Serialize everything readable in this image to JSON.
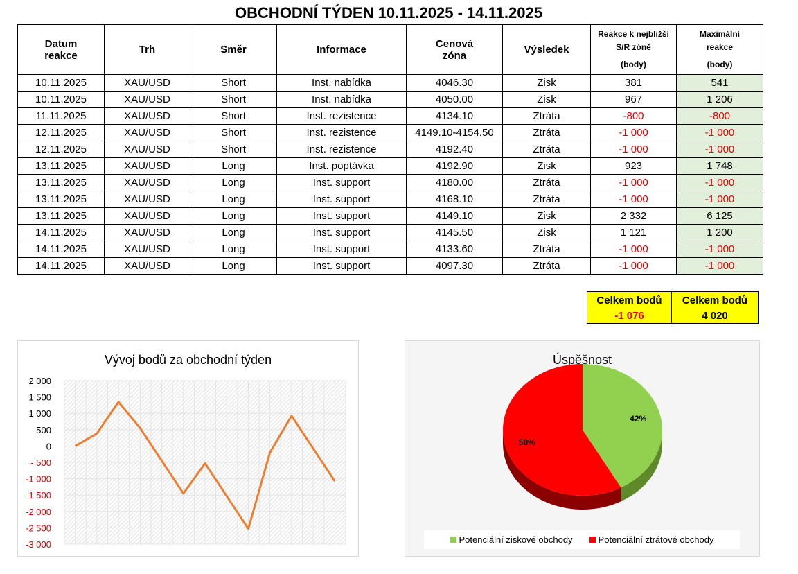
{
  "title": "OBCHODNÍ TÝDEN 10.11.2025 - 14.11.2025",
  "table": {
    "headers": [
      "Datum reakce",
      "Trh",
      "Směr",
      "Informace",
      "Cenová zóna",
      "Výsledek",
      "Reakce k nejbližší S/R zóně (body)",
      "Maximální reakce (body)"
    ],
    "header_lines": [
      [
        "Datum",
        "reakce"
      ],
      [
        "Trh"
      ],
      [
        "Směr"
      ],
      [
        "Informace"
      ],
      [
        "Cenová",
        "zóna"
      ],
      [
        "Výsledek"
      ],
      [
        "Reakce k nejbližší",
        "S/R zóně",
        "(body)"
      ],
      [
        "Maximální",
        "reakce",
        "(body)"
      ]
    ],
    "rows": [
      [
        "10.11.2025",
        "XAU/USD",
        "Short",
        "Inst. nabídka",
        "4046.30",
        "Zisk",
        "381",
        "541"
      ],
      [
        "10.11.2025",
        "XAU/USD",
        "Short",
        "Inst. nabídka",
        "4050.00",
        "Zisk",
        "967",
        "1 206"
      ],
      [
        "11.11.2025",
        "XAU/USD",
        "Short",
        "Inst. rezistence",
        "4134.10",
        "Ztráta",
        "-800",
        "-800"
      ],
      [
        "12.11.2025",
        "XAU/USD",
        "Short",
        "Inst. rezistence",
        "4149.10-4154.50",
        "Ztráta",
        "-1 000",
        "-1 000"
      ],
      [
        "12.11.2025",
        "XAU/USD",
        "Short",
        "Inst. rezistence",
        "4192.40",
        "Ztráta",
        "-1 000",
        "-1 000"
      ],
      [
        "13.11.2025",
        "XAU/USD",
        "Long",
        "Inst. poptávka",
        "4192.90",
        "Zisk",
        "923",
        "1 748"
      ],
      [
        "13.11.2025",
        "XAU/USD",
        "Long",
        "Inst. support",
        "4180.00",
        "Ztráta",
        "-1 000",
        "-1 000"
      ],
      [
        "13.11.2025",
        "XAU/USD",
        "Long",
        "Inst. support",
        "4168.10",
        "Ztráta",
        "-1 000",
        "-1 000"
      ],
      [
        "13.11.2025",
        "XAU/USD",
        "Long",
        "Inst. support",
        "4149.10",
        "Zisk",
        "2 332",
        "6 125"
      ],
      [
        "14.11.2025",
        "XAU/USD",
        "Long",
        "Inst. support",
        "4145.50",
        "Zisk",
        "1 121",
        "1 200"
      ],
      [
        "14.11.2025",
        "XAU/USD",
        "Long",
        "Inst. support",
        "4133.60",
        "Ztráta",
        "-1 000",
        "-1 000"
      ],
      [
        "14.11.2025",
        "XAU/USD",
        "Long",
        "Inst. support",
        "4097.30",
        "Ztráta",
        "-1 000",
        "-1 000"
      ]
    ]
  },
  "totals": [
    {
      "label": "Celkem bodů",
      "value": "-1 076"
    },
    {
      "label": "Celkem bodů",
      "value": "4 020"
    }
  ],
  "colors": {
    "line": "#ed7d31",
    "negative": "#e00000",
    "win": "#92d050",
    "loss": "#ff0000",
    "total_bg": "#ffff00",
    "max_bg": "#e2efda"
  },
  "chart_data": [
    {
      "type": "line",
      "title": "Vývoj bodů za obchodní týden",
      "x": [
        1,
        2,
        3,
        4,
        5,
        6,
        7,
        8,
        9,
        10,
        11,
        12,
        13
      ],
      "values": [
        0,
        381,
        1348,
        548,
        -452,
        -1452,
        -529,
        -1529,
        -2529,
        -197,
        924,
        -76,
        -1076
      ],
      "ylim": [
        -3000,
        2000
      ],
      "yticks": [
        "2 000",
        "1 500",
        "1 000",
        "500",
        "0",
        "- 500",
        "-1 000",
        "-1 500",
        "-2 000",
        "-2 500",
        "-3 000"
      ],
      "ytick_values": [
        2000,
        1500,
        1000,
        500,
        0,
        -500,
        -1000,
        -1500,
        -2000,
        -2500,
        -3000
      ],
      "grid": true,
      "negative_tick_color": "#e00000"
    },
    {
      "type": "pie",
      "title": "Úspěšnost",
      "style": "3d",
      "slices": [
        {
          "name": "Potenciální ziskové obchody",
          "value": 42,
          "label": "42%",
          "color": "#92d050"
        },
        {
          "name": "Potenciální ztrátové obchody",
          "value": 58,
          "label": "58%",
          "color": "#ff0000"
        }
      ],
      "legend": "bottom"
    }
  ]
}
